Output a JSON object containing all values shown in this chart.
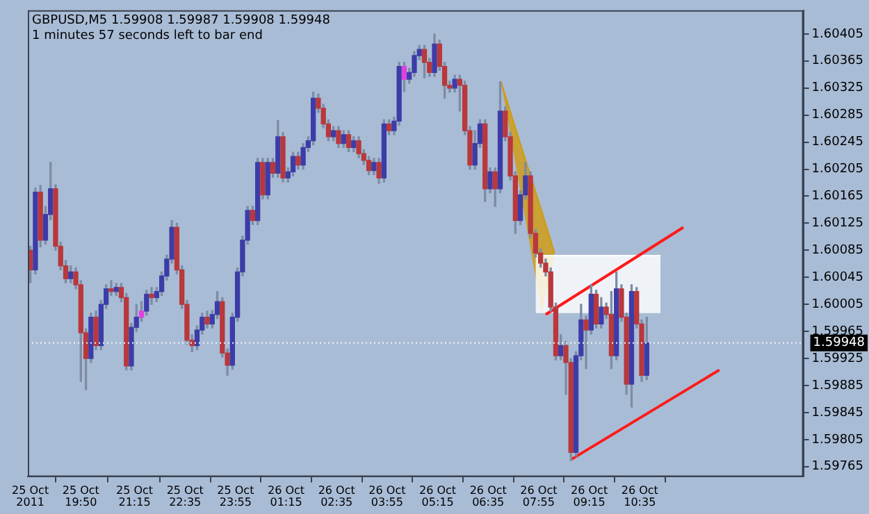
{
  "chart_data": {
    "type": "candlestick",
    "title": "GBPUSD,M5  1.59908 1.59987 1.59908 1.59948",
    "subtitle": "1 minutes 57 seconds left to bar end",
    "x": [
      "2011-10-25T18:30",
      "2011-10-25T18:38",
      "2011-10-25T18:46",
      "2011-10-25T18:54",
      "2011-10-25T19:02",
      "2011-10-25T19:10",
      "2011-10-25T19:18",
      "2011-10-25T19:26",
      "2011-10-25T19:34",
      "2011-10-25T19:42",
      "2011-10-25T19:50",
      "2011-10-25T19:58",
      "2011-10-25T20:06",
      "2011-10-25T20:14",
      "2011-10-25T20:22",
      "2011-10-25T20:30",
      "2011-10-25T20:38",
      "2011-10-25T20:46",
      "2011-10-25T20:54",
      "2011-10-25T21:02",
      "2011-10-25T21:10",
      "2011-10-25T21:18",
      "2011-10-25T21:26",
      "2011-10-25T21:34",
      "2011-10-25T21:42",
      "2011-10-25T21:50",
      "2011-10-25T21:58",
      "2011-10-25T22:06",
      "2011-10-25T22:14",
      "2011-10-25T22:22",
      "2011-10-25T22:30",
      "2011-10-25T22:38",
      "2011-10-25T22:46",
      "2011-10-25T22:54",
      "2011-10-25T23:02",
      "2011-10-25T23:10",
      "2011-10-25T23:18",
      "2011-10-25T23:26",
      "2011-10-25T23:34",
      "2011-10-25T23:42",
      "2011-10-25T23:50",
      "2011-10-25T23:58",
      "2011-10-26T00:06",
      "2011-10-26T00:14",
      "2011-10-26T00:22",
      "2011-10-26T00:30",
      "2011-10-26T00:38",
      "2011-10-26T00:46",
      "2011-10-26T00:54",
      "2011-10-26T01:02",
      "2011-10-26T01:10",
      "2011-10-26T01:18",
      "2011-10-26T01:26",
      "2011-10-26T01:34",
      "2011-10-26T01:42",
      "2011-10-26T01:50",
      "2011-10-26T01:58",
      "2011-10-26T02:06",
      "2011-10-26T02:14",
      "2011-10-26T02:22",
      "2011-10-26T02:30",
      "2011-10-26T02:38",
      "2011-10-26T02:46",
      "2011-10-26T02:54",
      "2011-10-26T03:02",
      "2011-10-26T03:10",
      "2011-10-26T03:18",
      "2011-10-26T03:26",
      "2011-10-26T03:34",
      "2011-10-26T03:42",
      "2011-10-26T03:50",
      "2011-10-26T03:58",
      "2011-10-26T04:06",
      "2011-10-26T04:14",
      "2011-10-26T04:22",
      "2011-10-26T04:30",
      "2011-10-26T04:38",
      "2011-10-26T04:46",
      "2011-10-26T04:54",
      "2011-10-26T05:02",
      "2011-10-26T05:10",
      "2011-10-26T05:18",
      "2011-10-26T05:26",
      "2011-10-26T05:34",
      "2011-10-26T05:42",
      "2011-10-26T05:50",
      "2011-10-26T05:58",
      "2011-10-26T06:06",
      "2011-10-26T06:14",
      "2011-10-26T06:22",
      "2011-10-26T06:30",
      "2011-10-26T06:38",
      "2011-10-26T06:46",
      "2011-10-26T06:54",
      "2011-10-26T07:02",
      "2011-10-26T07:10",
      "2011-10-26T07:18",
      "2011-10-26T07:26",
      "2011-10-26T07:34",
      "2011-10-26T07:42",
      "2011-10-26T07:50",
      "2011-10-26T07:58",
      "2011-10-26T08:06",
      "2011-10-26T08:14",
      "2011-10-26T08:22",
      "2011-10-26T08:30",
      "2011-10-26T08:38",
      "2011-10-26T08:46",
      "2011-10-26T08:54",
      "2011-10-26T09:02",
      "2011-10-26T09:10",
      "2011-10-26T09:18",
      "2011-10-26T09:26",
      "2011-10-26T09:34",
      "2011-10-26T09:42",
      "2011-10-26T09:50",
      "2011-10-26T09:58",
      "2011-10-26T10:06",
      "2011-10-26T10:14",
      "2011-10-26T10:22",
      "2011-10-26T10:30",
      "2011-10-26T10:38",
      "2011-10-26T10:46"
    ],
    "ohlc": [
      [
        1.60085,
        1.60091,
        1.60037,
        1.60056
      ],
      [
        1.60056,
        1.60177,
        1.6005,
        1.60171
      ],
      [
        1.60171,
        1.60181,
        1.6009,
        1.601
      ],
      [
        1.601,
        1.6015,
        1.60094,
        1.60138
      ],
      [
        1.60138,
        1.60215,
        1.6013,
        1.60176
      ],
      [
        1.60176,
        1.60182,
        1.60085,
        1.60091
      ],
      [
        1.60091,
        1.60097,
        1.60056,
        1.60062
      ],
      [
        1.60062,
        1.6007,
        1.60037,
        1.60043
      ],
      [
        1.60043,
        1.60062,
        1.60037,
        1.60053
      ],
      [
        1.60053,
        1.60059,
        1.60028,
        1.60034
      ],
      [
        1.60034,
        1.6004,
        1.59891,
        1.59963
      ],
      [
        1.59963,
        1.59969,
        1.59879,
        1.59925
      ],
      [
        1.59925,
        1.59992,
        1.59919,
        1.59986
      ],
      [
        1.59986,
        1.59995,
        1.59938,
        1.59944
      ],
      [
        1.59944,
        1.60011,
        1.59938,
        1.60005
      ],
      [
        1.60005,
        1.60034,
        1.59999,
        1.60028
      ],
      [
        1.60028,
        1.6004,
        1.60018,
        1.60024
      ],
      [
        1.60024,
        1.60036,
        1.60018,
        1.6003
      ],
      [
        1.6003,
        1.60036,
        1.60009,
        1.60015
      ],
      [
        1.60015,
        1.60021,
        1.59908,
        1.59914
      ],
      [
        1.59914,
        1.59977,
        1.59908,
        1.59971
      ],
      [
        1.59971,
        1.60005,
        1.59965,
        1.59986
      ],
      [
        1.59986,
        1.60009,
        1.5998,
        1.59995
      ],
      [
        1.59995,
        1.60026,
        1.59989,
        1.6002
      ],
      [
        1.6002,
        1.6003,
        1.60005,
        1.60015
      ],
      [
        1.60015,
        1.6003,
        1.60009,
        1.60024
      ],
      [
        1.60024,
        1.60053,
        1.60018,
        1.60047
      ],
      [
        1.60047,
        1.60078,
        1.60041,
        1.60072
      ],
      [
        1.60072,
        1.60129,
        1.60066,
        1.60119
      ],
      [
        1.60119,
        1.60125,
        1.6005,
        1.60056
      ],
      [
        1.60056,
        1.60062,
        1.59999,
        1.60005
      ],
      [
        1.60005,
        1.60011,
        1.59946,
        1.59952
      ],
      [
        1.59952,
        1.5996,
        1.59935,
        1.59944
      ],
      [
        1.59944,
        1.59973,
        1.59938,
        1.59967
      ],
      [
        1.59967,
        1.59992,
        1.59961,
        1.59986
      ],
      [
        1.59986,
        1.59995,
        1.5997,
        1.59976
      ],
      [
        1.59976,
        1.59996,
        1.5997,
        1.5999
      ],
      [
        1.5999,
        1.60024,
        1.59984,
        1.60009
      ],
      [
        1.60009,
        1.60015,
        1.59927,
        1.59933
      ],
      [
        1.59933,
        1.59939,
        1.599,
        1.59915
      ],
      [
        1.59915,
        1.59992,
        1.59909,
        1.59986
      ],
      [
        1.59986,
        1.60059,
        1.5998,
        1.60053
      ],
      [
        1.60053,
        1.60106,
        1.60047,
        1.601
      ],
      [
        1.601,
        1.6015,
        1.60094,
        1.60144
      ],
      [
        1.60144,
        1.6015,
        1.60123,
        1.60129
      ],
      [
        1.60129,
        1.60221,
        1.60123,
        1.60215
      ],
      [
        1.60215,
        1.60221,
        1.60161,
        1.60167
      ],
      [
        1.60167,
        1.60221,
        1.60161,
        1.60215
      ],
      [
        1.60215,
        1.60221,
        1.60193,
        1.60199
      ],
      [
        1.60199,
        1.60277,
        1.60193,
        1.60253
      ],
      [
        1.60253,
        1.60259,
        1.60186,
        1.60192
      ],
      [
        1.60192,
        1.60207,
        1.60186,
        1.60201
      ],
      [
        1.60201,
        1.6023,
        1.60195,
        1.60224
      ],
      [
        1.60224,
        1.6023,
        1.60205,
        1.60211
      ],
      [
        1.60211,
        1.60243,
        1.60205,
        1.60237
      ],
      [
        1.60237,
        1.60253,
        1.60231,
        1.60247
      ],
      [
        1.60247,
        1.60319,
        1.60241,
        1.6031
      ],
      [
        1.6031,
        1.60316,
        1.60289,
        1.60295
      ],
      [
        1.60295,
        1.60301,
        1.60266,
        1.60272
      ],
      [
        1.60272,
        1.60278,
        1.60247,
        1.60253
      ],
      [
        1.60253,
        1.60268,
        1.60247,
        1.60262
      ],
      [
        1.60262,
        1.60268,
        1.60237,
        1.60243
      ],
      [
        1.60243,
        1.60262,
        1.60237,
        1.60256
      ],
      [
        1.60256,
        1.60262,
        1.60231,
        1.60237
      ],
      [
        1.60237,
        1.60253,
        1.60231,
        1.60247
      ],
      [
        1.60247,
        1.60253,
        1.60222,
        1.60228
      ],
      [
        1.60228,
        1.60234,
        1.60212,
        1.60218
      ],
      [
        1.60218,
        1.60224,
        1.60197,
        1.60203
      ],
      [
        1.60203,
        1.60221,
        1.60197,
        1.60215
      ],
      [
        1.60215,
        1.60221,
        1.60184,
        1.60192
      ],
      [
        1.60192,
        1.60278,
        1.60186,
        1.60272
      ],
      [
        1.60272,
        1.60278,
        1.60256,
        1.60262
      ],
      [
        1.60262,
        1.60282,
        1.60256,
        1.60276
      ],
      [
        1.60276,
        1.60363,
        1.6027,
        1.60357
      ],
      [
        1.60357,
        1.60363,
        1.6032,
        1.60338
      ],
      [
        1.60338,
        1.60354,
        1.60332,
        1.60348
      ],
      [
        1.60348,
        1.60379,
        1.60342,
        1.60373
      ],
      [
        1.60373,
        1.60388,
        1.60367,
        1.60382
      ],
      [
        1.60382,
        1.60388,
        1.6034,
        1.60363
      ],
      [
        1.60363,
        1.60369,
        1.60342,
        1.60348
      ],
      [
        1.60348,
        1.60405,
        1.60342,
        1.6039
      ],
      [
        1.6039,
        1.60396,
        1.60351,
        1.60357
      ],
      [
        1.60357,
        1.60363,
        1.6031,
        1.60329
      ],
      [
        1.60329,
        1.60335,
        1.60319,
        1.60325
      ],
      [
        1.60325,
        1.60344,
        1.60319,
        1.60338
      ],
      [
        1.60338,
        1.60344,
        1.60291,
        1.60329
      ],
      [
        1.60329,
        1.60335,
        1.60256,
        1.60262
      ],
      [
        1.60262,
        1.60268,
        1.60205,
        1.60211
      ],
      [
        1.60211,
        1.60262,
        1.60205,
        1.60243
      ],
      [
        1.60243,
        1.60278,
        1.60237,
        1.60272
      ],
      [
        1.60272,
        1.60278,
        1.60157,
        1.60176
      ],
      [
        1.60176,
        1.60207,
        1.6017,
        1.60201
      ],
      [
        1.60201,
        1.60207,
        1.6015,
        1.60176
      ],
      [
        1.60176,
        1.60334,
        1.6017,
        1.60291
      ],
      [
        1.60291,
        1.60297,
        1.60247,
        1.60253
      ],
      [
        1.60253,
        1.60259,
        1.60189,
        1.60195
      ],
      [
        1.60195,
        1.60201,
        1.6011,
        1.60129
      ],
      [
        1.60129,
        1.60173,
        1.60123,
        1.60167
      ],
      [
        1.60167,
        1.60215,
        1.60161,
        1.60195
      ],
      [
        1.60195,
        1.60201,
        1.60104,
        1.6011
      ],
      [
        1.6011,
        1.60116,
        1.60075,
        1.60081
      ],
      [
        1.60081,
        1.60087,
        1.6006,
        1.60066
      ],
      [
        1.60066,
        1.60072,
        1.60047,
        1.60053
      ],
      [
        1.60053,
        1.60059,
        1.59995,
        1.60001
      ],
      [
        1.60001,
        1.60007,
        1.59923,
        1.59929
      ],
      [
        1.59929,
        1.5996,
        1.59923,
        1.59944
      ],
      [
        1.59944,
        1.5995,
        1.59872,
        1.59919
      ],
      [
        1.59919,
        1.59925,
        1.59774,
        1.59786
      ],
      [
        1.59786,
        1.59935,
        1.5978,
        1.59929
      ],
      [
        1.59929,
        1.60005,
        1.59923,
        1.59982
      ],
      [
        1.59982,
        1.59988,
        1.5991,
        1.59967
      ],
      [
        1.59967,
        1.60034,
        1.59961,
        1.6002
      ],
      [
        1.6002,
        1.60026,
        1.5997,
        1.59976
      ],
      [
        1.59976,
        1.60015,
        1.5997,
        1.60001
      ],
      [
        1.60001,
        1.60007,
        1.59984,
        1.5999
      ],
      [
        1.5999,
        1.60024,
        1.5991,
        1.59929
      ],
      [
        1.59929,
        1.60053,
        1.59923,
        1.60028
      ],
      [
        1.60028,
        1.60034,
        1.5998,
        1.59986
      ],
      [
        1.59986,
        1.59992,
        1.59872,
        1.59887
      ],
      [
        1.59887,
        1.60034,
        1.59853,
        1.60024
      ],
      [
        1.60024,
        1.6003,
        1.5997,
        1.59976
      ],
      [
        1.59976,
        1.59982,
        1.59891,
        1.599
      ],
      [
        1.599,
        1.59986,
        1.59894,
        1.59948
      ]
    ],
    "colors": [
      "#b8383c",
      "#3c3ca8",
      "#b8383c",
      "#3c3ca8",
      "#3c3ca8",
      "#b8383c",
      "#b8383c",
      "#b8383c",
      "#3c3ca8",
      "#b8383c",
      "#b8383c",
      "#b8383c",
      "#3c3ca8",
      "#b8383c",
      "#3c3ca8",
      "#3c3ca8",
      "#b8383c",
      "#3c3ca8",
      "#b8383c",
      "#b8383c",
      "#3c3ca8",
      "#3c3ca8",
      "#e040e0",
      "#3c3ca8",
      "#b8383c",
      "#3c3ca8",
      "#3c3ca8",
      "#3c3ca8",
      "#3c3ca8",
      "#b8383c",
      "#b8383c",
      "#b8383c",
      "#b8383c",
      "#3c3ca8",
      "#3c3ca8",
      "#b8383c",
      "#3c3ca8",
      "#3c3ca8",
      "#b8383c",
      "#b8383c",
      "#3c3ca8",
      "#3c3ca8",
      "#3c3ca8",
      "#3c3ca8",
      "#b8383c",
      "#3c3ca8",
      "#b8383c",
      "#3c3ca8",
      "#b8383c",
      "#3c3ca8",
      "#b8383c",
      "#3c3ca8",
      "#3c3ca8",
      "#b8383c",
      "#3c3ca8",
      "#3c3ca8",
      "#3c3ca8",
      "#b8383c",
      "#b8383c",
      "#b8383c",
      "#3c3ca8",
      "#b8383c",
      "#3c3ca8",
      "#b8383c",
      "#3c3ca8",
      "#b8383c",
      "#b8383c",
      "#b8383c",
      "#3c3ca8",
      "#b8383c",
      "#3c3ca8",
      "#b8383c",
      "#3c3ca8",
      "#3c3ca8",
      "#e040e0",
      "#3c3ca8",
      "#3c3ca8",
      "#3c3ca8",
      "#b8383c",
      "#b8383c",
      "#3c3ca8",
      "#b8383c",
      "#b8383c",
      "#b8383c",
      "#3c3ca8",
      "#b8383c",
      "#b8383c",
      "#b8383c",
      "#3c3ca8",
      "#3c3ca8",
      "#b8383c",
      "#3c3ca8",
      "#b8383c",
      "#3c3ca8",
      "#b8383c",
      "#b8383c",
      "#b8383c",
      "#3c3ca8",
      "#3c3ca8",
      "#b8383c",
      "#b8383c",
      "#b8383c",
      "#b8383c",
      "#b8383c",
      "#b8383c",
      "#3c3ca8",
      "#b8383c",
      "#b8383c",
      "#3c3ca8",
      "#3c3ca8",
      "#b8383c",
      "#3c3ca8",
      "#b8383c",
      "#3c3ca8",
      "#b8383c",
      "#b8383c",
      "#3c3ca8",
      "#b8383c",
      "#b8383c",
      "#3c3ca8",
      "#b8383c",
      "#b8383c",
      "#3c3ca8"
    ],
    "series": [
      {
        "type": "line",
        "color": "#ffffff",
        "x": [
          "2011-10-26T07:50",
          "2011-10-26T11:08"
        ],
        "values": [
          1.60077,
          1.60077
        ],
        "lower": [
          1.59992,
          1.59992
        ],
        "upper": [
          1.60077,
          1.60077
        ]
      },
      {
        "type": "line",
        "color": "#d09a10",
        "x": [
          "2011-10-26T06:55",
          "2011-10-26T07:40",
          "2011-10-26T08:00",
          "2011-10-26T08:20"
        ],
        "values": [
          1.60335,
          1.60201,
          1.60142,
          1.60081
        ],
        "lower": [
          1.60335,
          1.60098,
          1.59992,
          1.60081
        ],
        "upper": [
          1.60335,
          1.60201,
          1.60142,
          1.60081
        ]
      },
      {
        "type": "line",
        "color": "#ff1a1a",
        "x": [
          "2011-10-26T08:06",
          "2011-10-26T11:44"
        ],
        "values": [
          1.5999,
          1.60119
        ]
      },
      {
        "type": "line",
        "color": "#ff1a1a",
        "x": [
          "2011-10-26T08:47",
          "2011-10-26T12:41"
        ],
        "values": [
          1.59776,
          1.59908
        ]
      }
    ],
    "ref_lines": [
      {
        "axis": "y",
        "value": 1.59948,
        "label": "1.59948",
        "color": "#f0f4fa",
        "line_style": "dotted"
      }
    ],
    "xlim": [
      "2011-10-25T18:26",
      "2011-10-26T14:54"
    ],
    "xticks": [
      {
        "value": "2011-10-25T18:30",
        "label": "25 Oct 2011"
      },
      {
        "value": "2011-10-25T19:50",
        "label": "25 Oct 19:50"
      },
      {
        "value": "2011-10-25T21:15",
        "label": "25 Oct 21:15"
      },
      {
        "value": "2011-10-25T22:35",
        "label": "25 Oct 22:35"
      },
      {
        "value": "2011-10-25T23:55",
        "label": "25 Oct 23:55"
      },
      {
        "value": "2011-10-26T01:15",
        "label": "26 Oct 01:15"
      },
      {
        "value": "2011-10-26T02:35",
        "label": "26 Oct 02:35"
      },
      {
        "value": "2011-10-26T03:55",
        "label": "26 Oct 03:55"
      },
      {
        "value": "2011-10-26T05:15",
        "label": "26 Oct 05:15"
      },
      {
        "value": "2011-10-26T06:35",
        "label": "26 Oct 06:35"
      },
      {
        "value": "2011-10-26T07:55",
        "label": "26 Oct 07:55"
      },
      {
        "value": "2011-10-26T09:15",
        "label": "26 Oct 09:15"
      },
      {
        "value": "2011-10-26T10:35",
        "label": "26 Oct 10:35"
      }
    ],
    "ylim": [
      1.5975,
      1.6044
    ],
    "yticks": [
      1.59765,
      1.59805,
      1.59845,
      1.59885,
      1.59925,
      1.59965,
      1.60005,
      1.60045,
      1.60085,
      1.60125,
      1.60165,
      1.60205,
      1.60245,
      1.60285,
      1.60325,
      1.60365,
      1.60405
    ]
  }
}
